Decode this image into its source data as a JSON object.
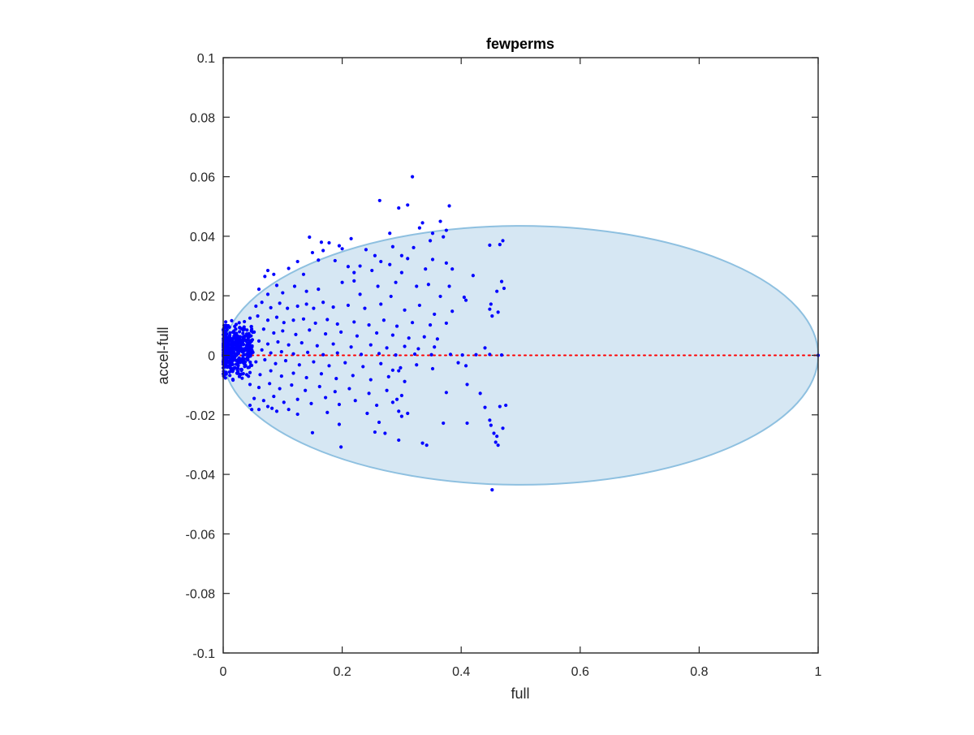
{
  "figure": {
    "background_color": "#ffffff"
  },
  "chart_data": {
    "type": "scatter",
    "title": "fewperms",
    "xlabel": "full",
    "ylabel": "accel-full",
    "xlim": [
      0,
      1
    ],
    "ylim": [
      -0.1,
      0.1
    ],
    "x_ticks": [
      0,
      0.2,
      0.4,
      0.6,
      0.8,
      1
    ],
    "x_tick_labels": [
      "0",
      "0.2",
      "0.4",
      "0.6",
      "0.8",
      "1"
    ],
    "y_ticks": [
      -0.1,
      -0.08,
      -0.06,
      -0.04,
      -0.02,
      0,
      0.02,
      0.04,
      0.06,
      0.08,
      0.1
    ],
    "y_tick_labels": [
      "-0.1",
      "-0.08",
      "-0.06",
      "-0.04",
      "-0.02",
      "0",
      "0.02",
      "0.04",
      "0.06",
      "0.08",
      "0.1"
    ],
    "grid": false,
    "box": true,
    "colors": {
      "points": "#0000ff",
      "region_fill": "#d6e7f3",
      "region_edge": "#8ec0e0",
      "reference_line": "#ff0000",
      "axis": "#262626"
    },
    "region": {
      "type": "ellipse",
      "center": [
        0.5,
        0
      ],
      "x_semi_axis": 0.5,
      "y_semi_axis": 0.0435
    },
    "reference_line": {
      "y": 0,
      "x_range": [
        0,
        1
      ],
      "style": "dotted"
    },
    "series": [
      {
        "points": [
          [
            0.318,
            0.06
          ],
          [
            0.263,
            0.052
          ],
          [
            0.31,
            0.0505
          ],
          [
            0.295,
            0.0495
          ],
          [
            0.38,
            0.0502
          ],
          [
            0.365,
            0.045
          ],
          [
            0.335,
            0.0445
          ],
          [
            0.352,
            0.041
          ],
          [
            0.33,
            0.0428
          ],
          [
            0.375,
            0.042
          ],
          [
            0.28,
            0.041
          ],
          [
            0.37,
            0.0398
          ],
          [
            0.145,
            0.0397
          ],
          [
            0.215,
            0.0392
          ],
          [
            0.47,
            0.0385
          ],
          [
            0.448,
            0.037
          ],
          [
            0.465,
            0.0372
          ],
          [
            0.165,
            0.038
          ],
          [
            0.178,
            0.0378
          ],
          [
            0.195,
            0.0368
          ],
          [
            0.168,
            0.0352
          ],
          [
            0.15,
            0.0345
          ],
          [
            0.2,
            0.0358
          ],
          [
            0.24,
            0.0355
          ],
          [
            0.285,
            0.0365
          ],
          [
            0.32,
            0.0362
          ],
          [
            0.348,
            0.0385
          ],
          [
            0.255,
            0.0335
          ],
          [
            0.3,
            0.0335
          ],
          [
            0.188,
            0.0318
          ],
          [
            0.125,
            0.0315
          ],
          [
            0.16,
            0.032
          ],
          [
            0.265,
            0.0315
          ],
          [
            0.31,
            0.0325
          ],
          [
            0.352,
            0.0322
          ],
          [
            0.375,
            0.031
          ],
          [
            0.075,
            0.0285
          ],
          [
            0.07,
            0.0265
          ],
          [
            0.085,
            0.0272
          ],
          [
            0.11,
            0.0292
          ],
          [
            0.135,
            0.0272
          ],
          [
            0.21,
            0.0298
          ],
          [
            0.23,
            0.03
          ],
          [
            0.22,
            0.0278
          ],
          [
            0.25,
            0.0285
          ],
          [
            0.28,
            0.0305
          ],
          [
            0.3,
            0.0278
          ],
          [
            0.34,
            0.029
          ],
          [
            0.385,
            0.029
          ],
          [
            0.42,
            0.0268
          ],
          [
            0.45,
            0.0172
          ],
          [
            0.46,
            0.0215
          ],
          [
            0.472,
            0.0225
          ],
          [
            0.468,
            0.0248
          ],
          [
            0.06,
            0.0222
          ],
          [
            0.075,
            0.0205
          ],
          [
            0.09,
            0.0235
          ],
          [
            0.1,
            0.021
          ],
          [
            0.12,
            0.0232
          ],
          [
            0.14,
            0.0215
          ],
          [
            0.16,
            0.0222
          ],
          [
            0.2,
            0.0245
          ],
          [
            0.22,
            0.025
          ],
          [
            0.23,
            0.0205
          ],
          [
            0.26,
            0.0232
          ],
          [
            0.282,
            0.0198
          ],
          [
            0.29,
            0.0245
          ],
          [
            0.325,
            0.0232
          ],
          [
            0.345,
            0.0238
          ],
          [
            0.365,
            0.0198
          ],
          [
            0.38,
            0.0232
          ],
          [
            0.405,
            0.0195
          ],
          [
            0.408,
            0.0185
          ],
          [
            0.448,
            0.0155
          ],
          [
            0.452,
            0.0132
          ],
          [
            0.462,
            0.0145
          ],
          [
            0.055,
            0.0165
          ],
          [
            0.065,
            0.0178
          ],
          [
            0.08,
            0.016
          ],
          [
            0.095,
            0.0175
          ],
          [
            0.108,
            0.0158
          ],
          [
            0.125,
            0.0165
          ],
          [
            0.14,
            0.0172
          ],
          [
            0.152,
            0.0158
          ],
          [
            0.168,
            0.0178
          ],
          [
            0.185,
            0.0162
          ],
          [
            0.21,
            0.0168
          ],
          [
            0.238,
            0.0158
          ],
          [
            0.265,
            0.0172
          ],
          [
            0.305,
            0.0152
          ],
          [
            0.33,
            0.0168
          ],
          [
            0.355,
            0.0138
          ],
          [
            0.385,
            0.0148
          ],
          [
            0.045,
            0.0125
          ],
          [
            0.058,
            0.0132
          ],
          [
            0.075,
            0.0118
          ],
          [
            0.09,
            0.0128
          ],
          [
            0.102,
            0.011
          ],
          [
            0.118,
            0.0118
          ],
          [
            0.135,
            0.0122
          ],
          [
            0.155,
            0.0108
          ],
          [
            0.175,
            0.012
          ],
          [
            0.192,
            0.0105
          ],
          [
            0.22,
            0.0112
          ],
          [
            0.245,
            0.0102
          ],
          [
            0.27,
            0.0118
          ],
          [
            0.292,
            0.0098
          ],
          [
            0.318,
            0.011
          ],
          [
            0.348,
            0.0102
          ],
          [
            0.375,
            0.0108
          ],
          [
            0.04,
            0.0085
          ],
          [
            0.052,
            0.0078
          ],
          [
            0.068,
            0.0088
          ],
          [
            0.085,
            0.0075
          ],
          [
            0.1,
            0.0082
          ],
          [
            0.122,
            0.007
          ],
          [
            0.145,
            0.0085
          ],
          [
            0.172,
            0.0072
          ],
          [
            0.198,
            0.0078
          ],
          [
            0.225,
            0.0065
          ],
          [
            0.258,
            0.0075
          ],
          [
            0.285,
            0.0068
          ],
          [
            0.312,
            0.0058
          ],
          [
            0.338,
            0.0062
          ],
          [
            0.36,
            0.0055
          ],
          [
            0.03,
            0.0052
          ],
          [
            0.045,
            0.0042
          ],
          [
            0.06,
            0.0048
          ],
          [
            0.075,
            0.0038
          ],
          [
            0.092,
            0.0045
          ],
          [
            0.11,
            0.0035
          ],
          [
            0.132,
            0.0042
          ],
          [
            0.158,
            0.0032
          ],
          [
            0.185,
            0.0038
          ],
          [
            0.215,
            0.0028
          ],
          [
            0.248,
            0.0035
          ],
          [
            0.275,
            0.0025
          ],
          [
            0.305,
            0.003
          ],
          [
            0.328,
            0.0022
          ],
          [
            0.355,
            0.0028
          ],
          [
            0.44,
            0.0025
          ],
          [
            0.035,
            0.0015
          ],
          [
            0.05,
            0.001
          ],
          [
            0.065,
            0.0018
          ],
          [
            0.08,
            0.0008
          ],
          [
            0.098,
            0.0012
          ],
          [
            0.118,
            0.0005
          ],
          [
            0.142,
            0.001
          ],
          [
            0.168,
            0.0002
          ],
          [
            0.192,
            0.0008
          ],
          [
            0.232,
            0.0003
          ],
          [
            0.262,
            0.0006
          ],
          [
            0.29,
            0.0001
          ],
          [
            0.322,
            0.0004
          ],
          [
            0.35,
            0.0002
          ],
          [
            0.382,
            0.0003
          ],
          [
            0.402,
            0.0001
          ],
          [
            0.425,
            0.0002
          ],
          [
            0.448,
            0.0003
          ],
          [
            0.468,
            0.0001
          ],
          [
            0.04,
            -0.0012
          ],
          [
            0.055,
            -0.0022
          ],
          [
            0.07,
            -0.0015
          ],
          [
            0.088,
            -0.0028
          ],
          [
            0.105,
            -0.0018
          ],
          [
            0.128,
            -0.0032
          ],
          [
            0.152,
            -0.0022
          ],
          [
            0.178,
            -0.0035
          ],
          [
            0.205,
            -0.0025
          ],
          [
            0.235,
            -0.0038
          ],
          [
            0.265,
            -0.0028
          ],
          [
            0.298,
            -0.0042
          ],
          [
            0.325,
            -0.0032
          ],
          [
            0.352,
            -0.0045
          ],
          [
            0.395,
            -0.0025
          ],
          [
            0.408,
            -0.0035
          ],
          [
            0.045,
            -0.0058
          ],
          [
            0.062,
            -0.0065
          ],
          [
            0.08,
            -0.0052
          ],
          [
            0.098,
            -0.007
          ],
          [
            0.118,
            -0.006
          ],
          [
            0.14,
            -0.0075
          ],
          [
            0.165,
            -0.0062
          ],
          [
            0.19,
            -0.0078
          ],
          [
            0.218,
            -0.0068
          ],
          [
            0.248,
            -0.0082
          ],
          [
            0.278,
            -0.0072
          ],
          [
            0.305,
            -0.0088
          ],
          [
            0.285,
            -0.005
          ],
          [
            0.295,
            -0.0052
          ],
          [
            0.045,
            -0.0098
          ],
          [
            0.06,
            -0.0108
          ],
          [
            0.078,
            -0.0095
          ],
          [
            0.095,
            -0.0112
          ],
          [
            0.115,
            -0.01
          ],
          [
            0.138,
            -0.0118
          ],
          [
            0.162,
            -0.0105
          ],
          [
            0.188,
            -0.0122
          ],
          [
            0.212,
            -0.0112
          ],
          [
            0.245,
            -0.0128
          ],
          [
            0.275,
            -0.0118
          ],
          [
            0.3,
            -0.0135
          ],
          [
            0.375,
            -0.0125
          ],
          [
            0.41,
            -0.0098
          ],
          [
            0.432,
            -0.0128
          ],
          [
            0.052,
            -0.0145
          ],
          [
            0.068,
            -0.0152
          ],
          [
            0.085,
            -0.0138
          ],
          [
            0.102,
            -0.0158
          ],
          [
            0.125,
            -0.0148
          ],
          [
            0.148,
            -0.0162
          ],
          [
            0.172,
            -0.0142
          ],
          [
            0.195,
            -0.0165
          ],
          [
            0.222,
            -0.0152
          ],
          [
            0.258,
            -0.0168
          ],
          [
            0.285,
            -0.0158
          ],
          [
            0.292,
            -0.0148
          ],
          [
            0.045,
            -0.0168
          ],
          [
            0.06,
            -0.0182
          ],
          [
            0.075,
            -0.0172
          ],
          [
            0.09,
            -0.0188
          ],
          [
            0.11,
            -0.0182
          ],
          [
            0.125,
            -0.0198
          ],
          [
            0.175,
            -0.0192
          ],
          [
            0.242,
            -0.0195
          ],
          [
            0.295,
            -0.0188
          ],
          [
            0.3,
            -0.0205
          ],
          [
            0.31,
            -0.0195
          ],
          [
            0.44,
            -0.0175
          ],
          [
            0.448,
            -0.0218
          ],
          [
            0.465,
            -0.0172
          ],
          [
            0.475,
            -0.0168
          ],
          [
            0.048,
            -0.0182
          ],
          [
            0.082,
            -0.0178
          ],
          [
            0.262,
            -0.0225
          ],
          [
            0.195,
            -0.0232
          ],
          [
            0.37,
            -0.0228
          ],
          [
            0.41,
            -0.0228
          ],
          [
            0.45,
            -0.0235
          ],
          [
            0.47,
            -0.0245
          ],
          [
            0.255,
            -0.0258
          ],
          [
            0.272,
            -0.0262
          ],
          [
            0.15,
            -0.026
          ],
          [
            0.455,
            -0.0262
          ],
          [
            0.46,
            -0.0272
          ],
          [
            0.295,
            -0.0285
          ],
          [
            0.335,
            -0.0295
          ],
          [
            0.342,
            -0.0302
          ],
          [
            0.198,
            -0.0308
          ],
          [
            0.458,
            -0.0292
          ],
          [
            0.462,
            -0.0302
          ],
          [
            0.452,
            -0.0452
          ],
          [
            1.0,
            0.0
          ]
        ]
      }
    ],
    "dense_cluster": {
      "x_range": [
        0,
        0.05
      ],
      "y_range": [
        -0.01,
        0.014
      ],
      "approx_count": 450
    }
  }
}
